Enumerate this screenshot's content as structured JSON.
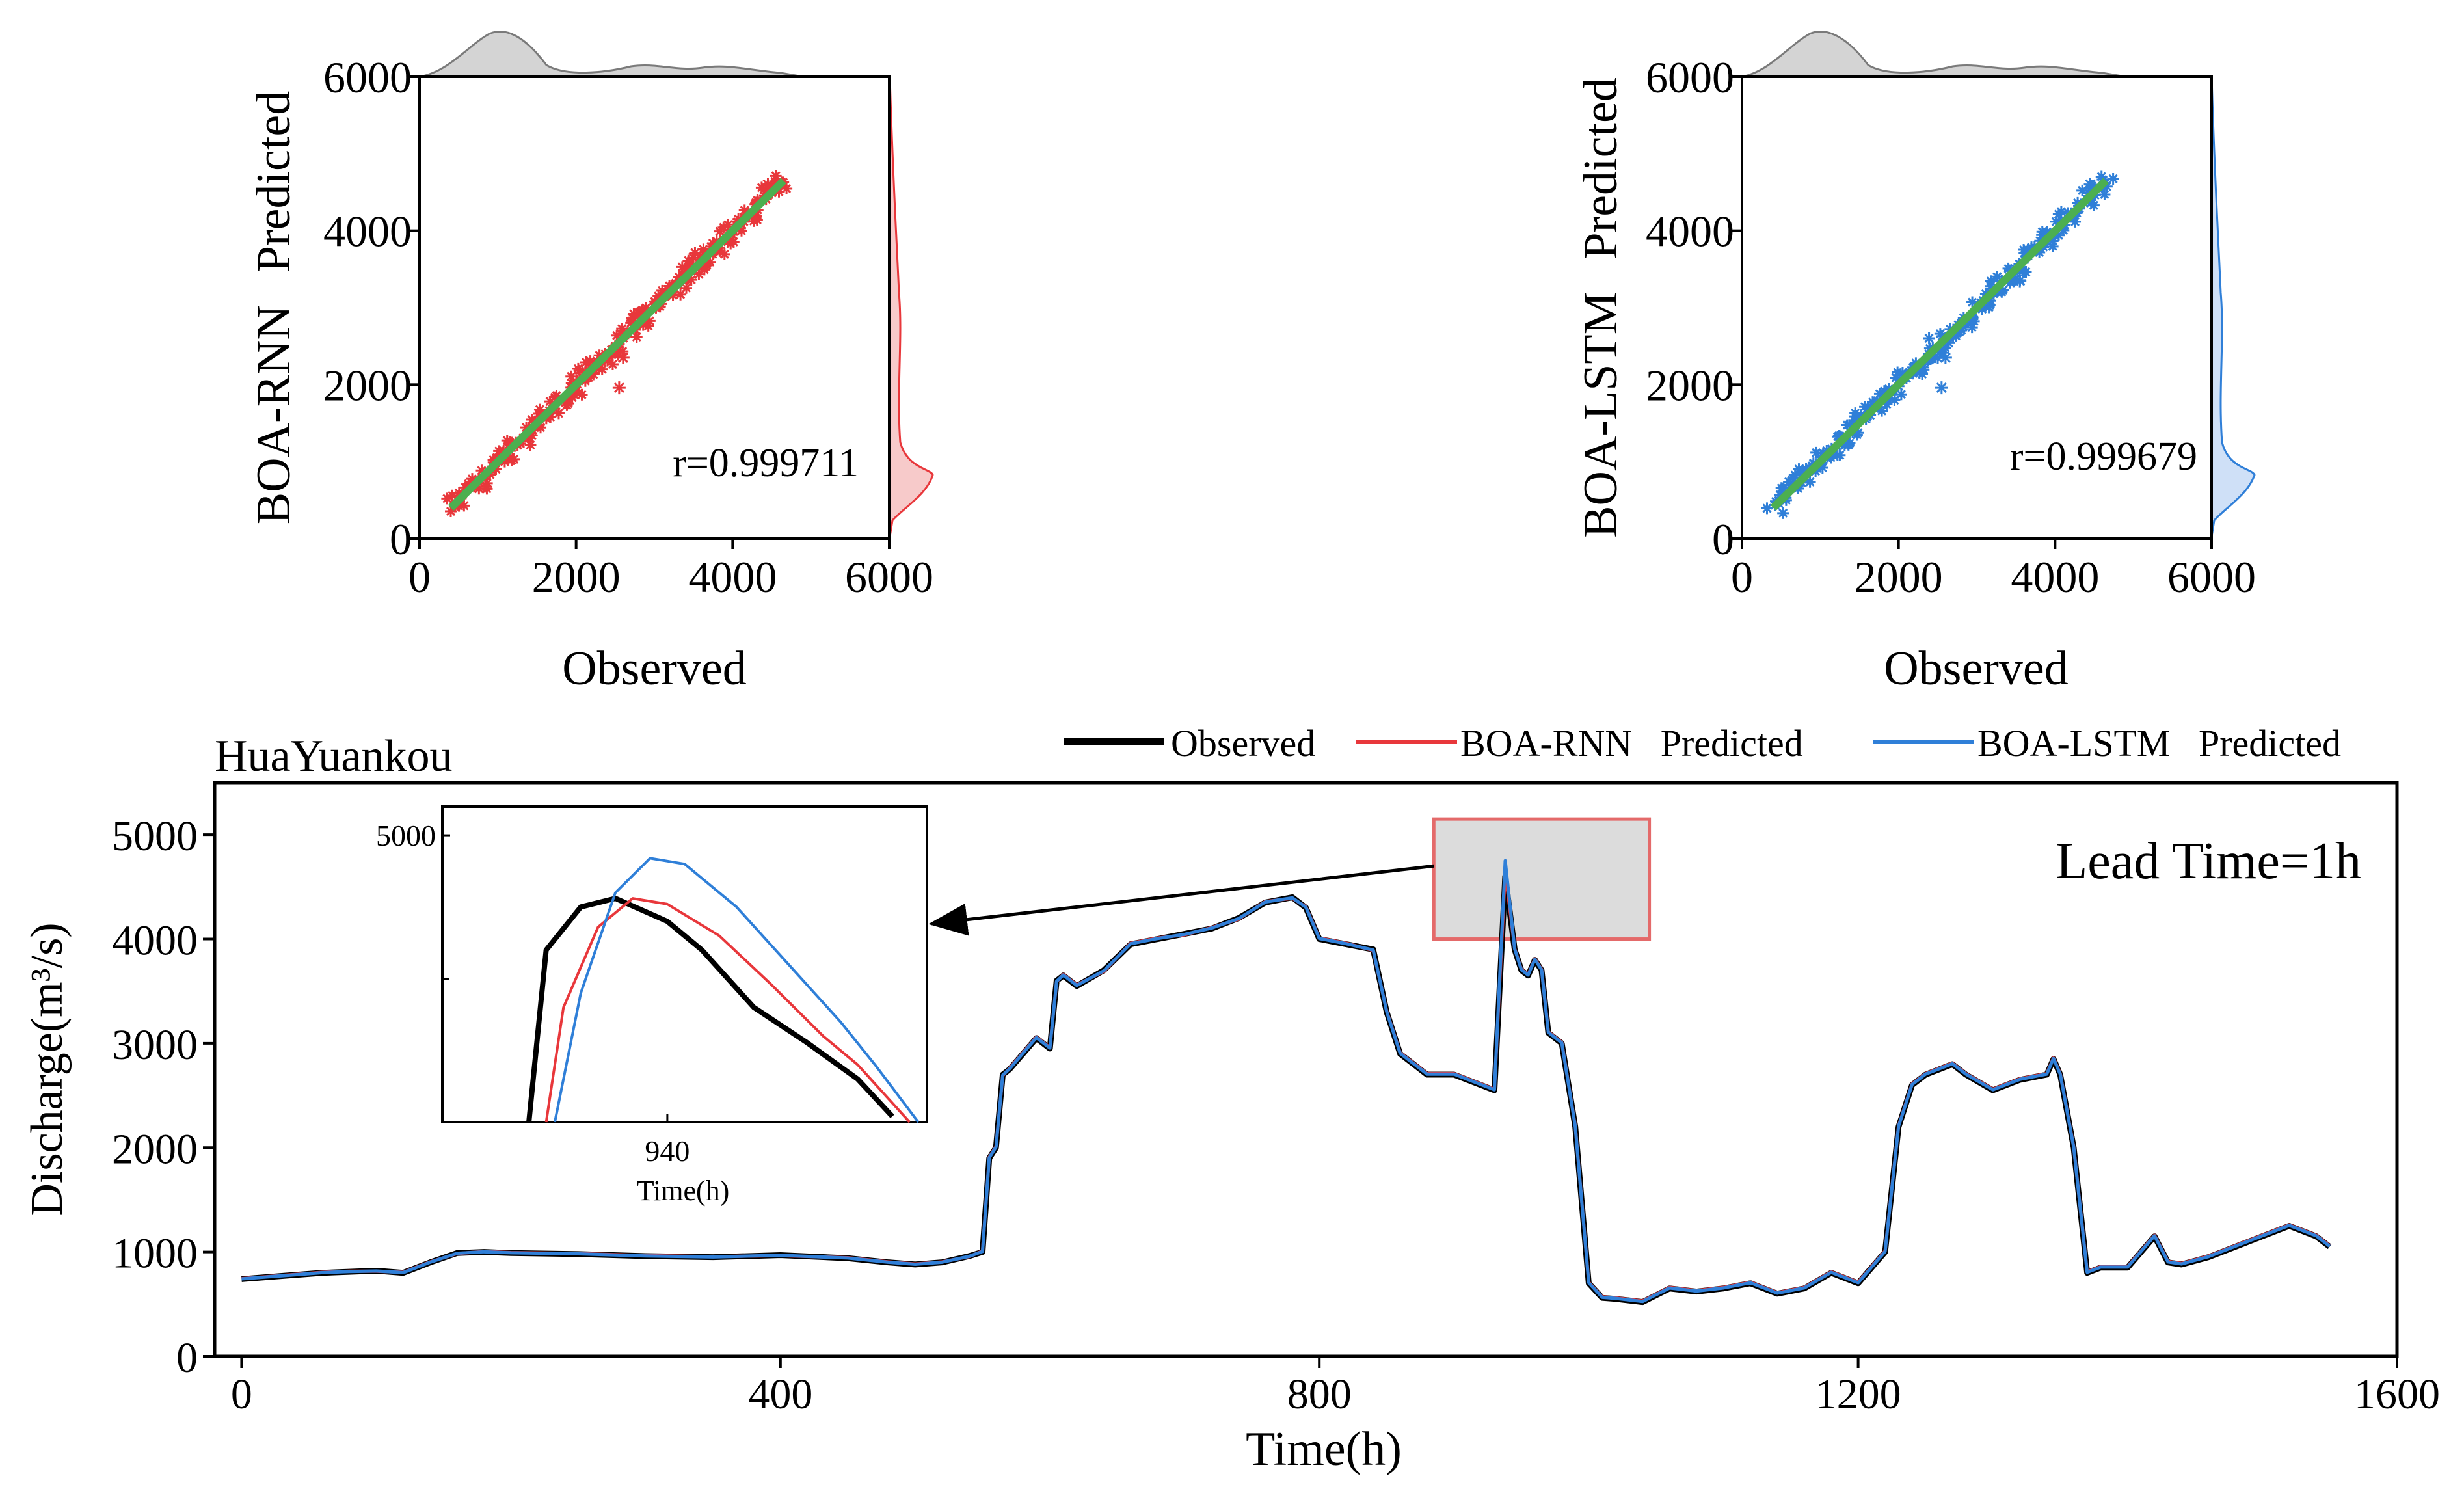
{
  "colors": {
    "observed": "#000000",
    "rnn": "#e8373b",
    "lstm": "#2f7fd8",
    "fit": "#4caf50",
    "density": "#9a9a9a",
    "zoom_box": "#e46a6a",
    "zoom_fill": "#dcdcdc"
  },
  "chart_data": [
    {
      "type": "scatter",
      "id": "rnn-scatter",
      "xlabel": "Observed",
      "ylabel_model": "BOA-RNN",
      "ylabel_suffix": "Predicted",
      "annotation": "r=0.999711",
      "xlim": [
        0,
        6000
      ],
      "ylim": [
        0,
        6000
      ],
      "xticks": [
        0,
        2000,
        4000,
        6000
      ],
      "yticks": [
        0,
        2000,
        4000,
        6000
      ],
      "marker_color": "rnn",
      "fit_line": [
        [
          400,
          400
        ],
        [
          4650,
          4650
        ]
      ],
      "outliers": [
        [
          2550,
          1960
        ],
        [
          2600,
          2350
        ],
        [
          3500,
          3650
        ],
        [
          4450,
          4600
        ]
      ]
    },
    {
      "type": "scatter",
      "id": "lstm-scatter",
      "xlabel": "Observed",
      "ylabel_model": "BOA-LSTM",
      "ylabel_suffix": "Predicted",
      "annotation": "r=0.999679",
      "xlim": [
        0,
        6000
      ],
      "ylim": [
        0,
        6000
      ],
      "xticks": [
        0,
        2000,
        4000,
        6000
      ],
      "yticks": [
        0,
        2000,
        4000,
        6000
      ],
      "marker_color": "lstm",
      "fit_line": [
        [
          400,
          400
        ],
        [
          4650,
          4650
        ]
      ],
      "outliers": [
        [
          2550,
          1960
        ],
        [
          2600,
          2350
        ],
        [
          3550,
          3350
        ],
        [
          4450,
          4600
        ]
      ]
    },
    {
      "type": "line",
      "id": "timeseries",
      "title": "HuaYuankou",
      "annotation": "Lead Time=1h",
      "xlabel": "Time(h)",
      "ylabel": "Discharge(m³/s)",
      "xlim": [
        -20,
        1600
      ],
      "ylim": [
        0,
        5500
      ],
      "xticks": [
        0,
        400,
        800,
        1200,
        1600
      ],
      "yticks": [
        0,
        1000,
        2000,
        3000,
        4000,
        5000
      ],
      "legend_position": "top",
      "series": [
        {
          "name": "Observed",
          "color": "observed"
        },
        {
          "name": "BOA-RNN   Predicted",
          "color": "rnn"
        },
        {
          "name": "BOA-LSTM   Predicted",
          "color": "lstm"
        }
      ],
      "x": [
        0,
        20,
        40,
        60,
        80,
        100,
        120,
        140,
        160,
        180,
        200,
        250,
        300,
        350,
        400,
        450,
        480,
        500,
        520,
        540,
        550,
        555,
        560,
        565,
        570,
        580,
        590,
        600,
        605,
        610,
        620,
        640,
        660,
        680,
        700,
        720,
        740,
        760,
        780,
        790,
        800,
        820,
        840,
        850,
        860,
        880,
        900,
        920,
        930,
        938,
        945,
        950,
        955,
        960,
        965,
        970,
        980,
        990,
        1000,
        1010,
        1020,
        1040,
        1060,
        1080,
        1100,
        1120,
        1140,
        1160,
        1180,
        1190,
        1200,
        1220,
        1230,
        1240,
        1250,
        1260,
        1270,
        1280,
        1300,
        1320,
        1340,
        1345,
        1350,
        1360,
        1370,
        1380,
        1400,
        1420,
        1430,
        1440,
        1460,
        1480,
        1500,
        1520,
        1540,
        1550
      ],
      "observed": [
        740,
        760,
        780,
        800,
        810,
        820,
        800,
        900,
        990,
        1000,
        990,
        980,
        960,
        950,
        970,
        940,
        900,
        880,
        900,
        960,
        1000,
        1900,
        2000,
        2700,
        2750,
        2900,
        3050,
        2950,
        3600,
        3650,
        3550,
        3700,
        3950,
        4000,
        4050,
        4100,
        4200,
        4350,
        4400,
        4300,
        4000,
        3950,
        3900,
        3300,
        2900,
        2700,
        2700,
        2600,
        2550,
        4600,
        3900,
        3700,
        3650,
        3800,
        3700,
        3100,
        3000,
        2200,
        700,
        560,
        550,
        520,
        650,
        620,
        650,
        700,
        600,
        650,
        800,
        750,
        700,
        1000,
        2200,
        2600,
        2700,
        2750,
        2800,
        2700,
        2550,
        2650,
        2700,
        2850,
        2700,
        2000,
        800,
        850,
        850,
        1150,
        900,
        880,
        950,
        1050,
        1150,
        1250,
        1150,
        1050
      ],
      "rnn": [
        745,
        765,
        785,
        805,
        815,
        815,
        805,
        905,
        985,
        1005,
        995,
        985,
        965,
        955,
        965,
        945,
        905,
        885,
        905,
        955,
        1010,
        1910,
        2010,
        2690,
        2760,
        2910,
        3060,
        2960,
        3590,
        3660,
        3560,
        3690,
        3960,
        4010,
        4040,
        4110,
        4190,
        4360,
        4390,
        4310,
        4010,
        3960,
        3890,
        3310,
        2910,
        2710,
        2710,
        2610,
        2560,
        4650,
        3910,
        3710,
        3660,
        3810,
        3710,
        3110,
        3010,
        2210,
        710,
        570,
        560,
        530,
        660,
        630,
        660,
        710,
        610,
        660,
        810,
        760,
        710,
        1010,
        2210,
        2610,
        2710,
        2760,
        2810,
        2710,
        2560,
        2660,
        2710,
        2860,
        2710,
        2010,
        810,
        860,
        860,
        1160,
        910,
        890,
        960,
        1060,
        1160,
        1260,
        1160,
        1060
      ],
      "lstm": [
        742,
        762,
        782,
        802,
        812,
        818,
        802,
        902,
        988,
        1002,
        992,
        982,
        962,
        952,
        968,
        942,
        902,
        882,
        902,
        958,
        1005,
        1905,
        2005,
        2695,
        2755,
        2905,
        3055,
        2955,
        3595,
        3655,
        3555,
        3695,
        3955,
        4005,
        4045,
        4105,
        4195,
        4355,
        4395,
        4305,
        4005,
        3955,
        3895,
        3305,
        2905,
        2705,
        2705,
        2605,
        2555,
        4750,
        3905,
        3705,
        3655,
        3805,
        3705,
        3105,
        3005,
        2205,
        705,
        565,
        555,
        525,
        655,
        625,
        655,
        705,
        605,
        655,
        805,
        755,
        705,
        1005,
        2205,
        2605,
        2705,
        2755,
        2805,
        2705,
        2555,
        2655,
        2705,
        2855,
        2705,
        2005,
        805,
        855,
        855,
        1155,
        905,
        885,
        955,
        1055,
        1155,
        1255,
        1155,
        1055
      ],
      "zoom_box": {
        "x0": 885,
        "x1": 1045,
        "y0": 4000,
        "y1": 5150
      },
      "inset": {
        "xlabel": "Time(h)",
        "xticks": [
          940
        ],
        "yticks": [
          5000
        ],
        "xlim": [
          927,
          955
        ],
        "ylim": [
          4000,
          5100
        ],
        "observed": [
          [
            932,
            4000
          ],
          [
            933,
            4600
          ],
          [
            935,
            4750
          ],
          [
            937,
            4780
          ],
          [
            940,
            4700
          ],
          [
            942,
            4600
          ],
          [
            945,
            4400
          ],
          [
            948,
            4280
          ],
          [
            951,
            4150
          ],
          [
            953,
            4020
          ]
        ],
        "rnn": [
          [
            933,
            4000
          ],
          [
            934,
            4400
          ],
          [
            936,
            4680
          ],
          [
            938,
            4780
          ],
          [
            940,
            4760
          ],
          [
            943,
            4650
          ],
          [
            946,
            4480
          ],
          [
            949,
            4300
          ],
          [
            951,
            4200
          ],
          [
            954,
            4000
          ]
        ],
        "lstm": [
          [
            933.5,
            4000
          ],
          [
            935,
            4450
          ],
          [
            937,
            4800
          ],
          [
            939,
            4920
          ],
          [
            941,
            4900
          ],
          [
            944,
            4750
          ],
          [
            947,
            4550
          ],
          [
            950,
            4350
          ],
          [
            952,
            4200
          ],
          [
            954.5,
            4000
          ]
        ]
      }
    }
  ]
}
